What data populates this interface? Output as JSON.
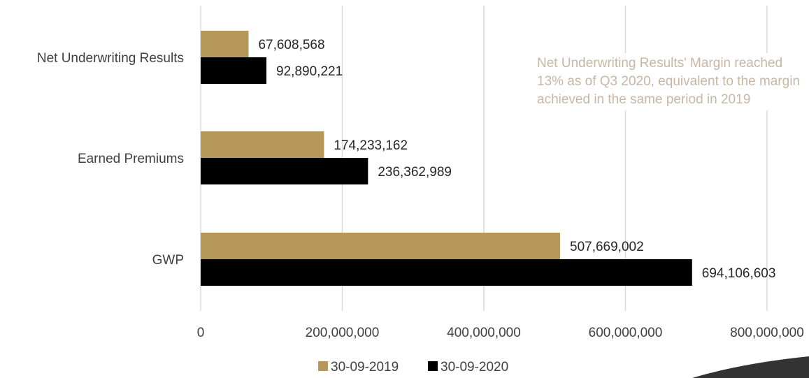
{
  "chart_data": {
    "type": "bar",
    "orientation": "horizontal",
    "categories": [
      "Net Underwriting Results",
      "Earned Premiums",
      "GWP"
    ],
    "series": [
      {
        "name": "30-09-2019",
        "values": [
          67608568,
          174233162,
          507669002
        ],
        "labels": [
          "67,608,568",
          "174,233,162",
          "507,669,002"
        ],
        "color": "#b5985a"
      },
      {
        "name": "30-09-2020",
        "values": [
          92890221,
          236362989,
          694106603
        ],
        "labels": [
          "92,890,221",
          "236,362,989",
          "694,106,603"
        ],
        "color": "#000000"
      }
    ],
    "xlim": [
      0,
      800000000
    ],
    "xticks": [
      0,
      200000000,
      400000000,
      600000000,
      800000000
    ],
    "xtick_labels": [
      "0",
      "200,000,000",
      "400,000,000",
      "600,000,000",
      "800,000,000"
    ],
    "grid": true,
    "legend_position": "bottom",
    "annotation": "Net Underwriting Results' Margin reached 13% as of Q3 2020, equivalent to the margin achieved in the same period in 2019"
  },
  "colors": {
    "gridline": "#d9d9d9",
    "annotation_text": "#c8b6a4",
    "corner_accent": "#333333"
  }
}
